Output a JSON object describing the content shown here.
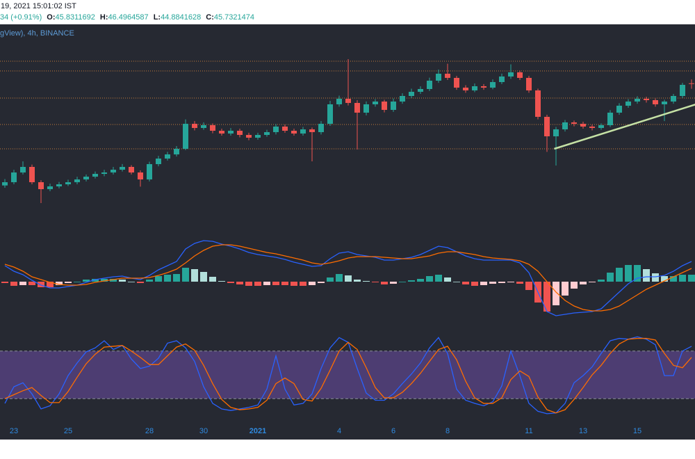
{
  "header": {
    "datetime": "19, 2021 15:01:02 IST",
    "change": "34 (+0.91%)",
    "labels": [
      "O:",
      "H:",
      "L:",
      "C:"
    ]
  },
  "chart_data": [
    {
      "type": "candlestick",
      "title": "gView), 4h, BINANCE",
      "categories": [
        null,
        "23",
        null,
        null,
        null,
        null,
        null,
        "25",
        null,
        null,
        null,
        null,
        null,
        null,
        null,
        null,
        "28",
        null,
        null,
        null,
        null,
        null,
        "30",
        null,
        null,
        null,
        null,
        null,
        "2021",
        null,
        null,
        null,
        null,
        null,
        null,
        null,
        null,
        "4",
        null,
        null,
        null,
        null,
        null,
        "6",
        null,
        null,
        null,
        null,
        null,
        "8",
        null,
        null,
        null,
        null,
        null,
        null,
        null,
        null,
        "11",
        null,
        null,
        null,
        null,
        null,
        "13",
        null,
        null,
        null,
        null,
        null,
        "15",
        null,
        null,
        null,
        null,
        null,
        null
      ],
      "open": [
        28.2,
        28.76,
        30.44,
        31.4,
        28.76,
        27.56,
        28.04,
        28.4,
        28.76,
        29.24,
        29.72,
        30.2,
        30.44,
        30.92,
        31.4,
        30.44,
        29.24,
        31.88,
        32.84,
        33.56,
        34.52,
        38.84,
        38.12,
        38.6,
        37.64,
        37.16,
        37.64,
        36.92,
        36.44,
        36.92,
        37.4,
        38.36,
        37.64,
        37.16,
        37.88,
        37.4,
        38.84,
        42.2,
        43.16,
        42.44,
        40.76,
        42.2,
        42.68,
        41.24,
        42.68,
        43.64,
        44.36,
        44.84,
        46.28,
        47.48,
        46.76,
        45.08,
        44.6,
        45.32,
        45.08,
        46.04,
        47.0,
        47.72,
        46.76,
        44.6,
        40.04,
        36.68,
        37.88,
        39.08,
        38.84,
        38.36,
        38.12,
        38.6,
        40.76,
        41.96,
        42.68,
        43.16,
        42.92,
        42.2,
        42.68,
        43.64,
        45.8311692
      ],
      "high": [
        29.3,
        30.9,
        32.36,
        31.8,
        29.1,
        28.5,
        28.8,
        29.2,
        29.7,
        30.1,
        30.6,
        30.9,
        31.4,
        31.9,
        31.7,
        30.8,
        32.3,
        33.3,
        34.0,
        35.0,
        39.6,
        39.3,
        39.1,
        38.9,
        38.0,
        38.1,
        38.0,
        37.3,
        37.3,
        37.8,
        38.8,
        38.7,
        38.0,
        38.3,
        38.2,
        39.3,
        42.8,
        43.7,
        50.0,
        42.9,
        42.7,
        43.1,
        43.0,
        43.2,
        44.1,
        44.9,
        45.3,
        46.8,
        48.2,
        49.2,
        47.1,
        45.5,
        45.8,
        45.7,
        46.5,
        47.5,
        49.1,
        48.0,
        47.1,
        44.9,
        40.4,
        38.3,
        39.5,
        39.4,
        39.2,
        38.7,
        38.9,
        41.2,
        42.4,
        43.1,
        43.6,
        43.5,
        43.2,
        43.0,
        44.0,
        45.9,
        46.4964587
      ],
      "low": [
        27.8,
        28.4,
        30.1,
        28.4,
        25.16,
        27.2,
        27.7,
        28.1,
        28.4,
        28.9,
        29.4,
        29.8,
        30.1,
        30.6,
        30.1,
        28.0,
        28.9,
        31.5,
        32.5,
        33.2,
        34.3,
        37.7,
        37.8,
        37.2,
        36.8,
        36.8,
        36.5,
        36.0,
        36.1,
        36.6,
        37.0,
        37.3,
        36.8,
        36.8,
        32.36,
        37.0,
        38.5,
        41.8,
        42.0,
        34.4,
        40.3,
        41.8,
        40.8,
        40.9,
        42.3,
        43.3,
        44.0,
        44.5,
        45.9,
        46.4,
        44.7,
        44.2,
        44.3,
        44.7,
        44.8,
        45.7,
        46.6,
        46.4,
        44.2,
        39.6,
        34.0,
        31.64,
        37.5,
        38.4,
        38.0,
        37.7,
        37.8,
        38.3,
        40.4,
        41.6,
        42.3,
        42.5,
        41.8,
        39.3,
        42.3,
        43.3,
        44.8841628
      ],
      "close": [
        28.76,
        30.44,
        31.4,
        28.76,
        27.56,
        28.04,
        28.4,
        28.76,
        29.24,
        29.72,
        30.2,
        30.44,
        30.92,
        31.4,
        30.44,
        29.24,
        31.88,
        32.84,
        33.56,
        34.52,
        38.84,
        38.12,
        38.6,
        37.64,
        37.16,
        37.64,
        36.92,
        36.44,
        36.92,
        37.4,
        38.36,
        37.64,
        37.16,
        37.88,
        37.4,
        38.84,
        42.2,
        43.16,
        42.44,
        40.76,
        42.2,
        42.68,
        41.24,
        42.68,
        43.64,
        44.36,
        44.84,
        46.28,
        47.48,
        46.76,
        45.08,
        44.6,
        45.32,
        45.08,
        46.04,
        47.0,
        47.72,
        46.76,
        44.6,
        40.04,
        36.68,
        37.88,
        39.08,
        38.84,
        38.36,
        38.12,
        38.6,
        40.76,
        41.96,
        42.68,
        43.16,
        42.92,
        42.2,
        42.68,
        43.64,
        45.56,
        45.7321474
      ],
      "ylim": [
        20,
        56
      ],
      "up_color": "#26a69a",
      "down_color": "#ef5350",
      "levels": {
        "values": [
          49.64,
          47.96,
          43.28,
          38.72,
          34.52
        ],
        "color": "#c47c3b"
      },
      "trendline": {
        "x": [
          60.8,
          76.5
        ],
        "y": [
          34.52,
          42.2
        ],
        "color": "#c5e1a5"
      }
    },
    {
      "type": "macd",
      "ylim": [
        -1.4,
        1.4
      ],
      "series": [
        {
          "color": "#2962ff",
          "values": [
            0.46,
            0.3,
            0.2,
            0.04,
            -0.1,
            -0.18,
            -0.18,
            -0.14,
            -0.1,
            -0.02,
            0.06,
            0.1,
            0.14,
            0.16,
            0.1,
            0.06,
            0.18,
            0.34,
            0.46,
            0.58,
            0.94,
            1.1,
            1.18,
            1.16,
            1.08,
            1.02,
            0.94,
            0.84,
            0.78,
            0.74,
            0.7,
            0.64,
            0.56,
            0.5,
            0.44,
            0.46,
            0.66,
            0.82,
            0.86,
            0.78,
            0.74,
            0.7,
            0.62,
            0.62,
            0.66,
            0.7,
            0.78,
            0.9,
            1.02,
            0.98,
            0.86,
            0.74,
            0.66,
            0.62,
            0.62,
            0.62,
            0.62,
            0.54,
            0.26,
            -0.3,
            -0.86,
            -0.98,
            -0.94,
            -0.9,
            -0.88,
            -0.86,
            -0.78,
            -0.54,
            -0.3,
            -0.06,
            0.1,
            0.14,
            0.14,
            0.18,
            0.3,
            0.46,
            0.58
          ]
        },
        {
          "color": "#ff6d00",
          "values": [
            0.5,
            0.42,
            0.3,
            0.14,
            0.06,
            -0.02,
            -0.08,
            -0.1,
            -0.1,
            -0.08,
            -0.02,
            0.02,
            0.06,
            0.1,
            0.1,
            0.1,
            0.12,
            0.18,
            0.26,
            0.36,
            0.54,
            0.74,
            0.9,
            1.02,
            1.06,
            1.06,
            1.02,
            0.96,
            0.9,
            0.84,
            0.8,
            0.74,
            0.68,
            0.62,
            0.54,
            0.5,
            0.54,
            0.6,
            0.68,
            0.72,
            0.72,
            0.72,
            0.7,
            0.68,
            0.66,
            0.66,
            0.7,
            0.74,
            0.82,
            0.86,
            0.86,
            0.82,
            0.78,
            0.72,
            0.68,
            0.66,
            0.64,
            0.6,
            0.5,
            0.3,
            0,
            -0.3,
            -0.54,
            -0.7,
            -0.8,
            -0.84,
            -0.84,
            -0.8,
            -0.7,
            -0.54,
            -0.38,
            -0.22,
            -0.1,
            0.02,
            0.14,
            0.26,
            0.38
          ]
        }
      ],
      "histogram": {
        "colors": [
          "#26a69a",
          "#b2dfdb",
          "#ffcdd2",
          "#ef5350"
        ],
        "values": [
          -0.04,
          -0.12,
          -0.1,
          -0.1,
          -0.16,
          -0.16,
          -0.1,
          -0.04,
          0,
          0.06,
          0.08,
          0.08,
          0.08,
          0.06,
          0,
          -0.04,
          0.06,
          0.16,
          0.2,
          0.22,
          0.4,
          0.36,
          0.28,
          0.14,
          0.02,
          -0.04,
          -0.08,
          -0.12,
          -0.12,
          -0.1,
          -0.1,
          -0.1,
          -0.12,
          -0.12,
          -0.1,
          -0.04,
          0.12,
          0.22,
          0.18,
          0.06,
          0.02,
          -0.02,
          -0.08,
          -0.06,
          0,
          0.04,
          0.08,
          0.16,
          0.2,
          0.12,
          0,
          -0.08,
          -0.12,
          -0.1,
          -0.06,
          -0.04,
          -0.02,
          -0.06,
          -0.24,
          -0.6,
          -0.86,
          -0.68,
          -0.4,
          -0.2,
          -0.08,
          -0.02,
          0.06,
          0.26,
          0.4,
          0.48,
          0.48,
          0.36,
          0.24,
          0.16,
          0.16,
          0.2,
          0.2
        ]
      }
    },
    {
      "type": "stoch",
      "ylim": [
        0,
        100
      ],
      "bands": [
        20,
        80
      ],
      "band_color": "#7e57c2",
      "series": [
        {
          "color": "#2962ff",
          "values": [
            14,
            35,
            40,
            26,
            7,
            11,
            26,
            49,
            65,
            79,
            84,
            93,
            82,
            87,
            70,
            58,
            61,
            71,
            90,
            93,
            84,
            67,
            35,
            14,
            7,
            5,
            7,
            9,
            12,
            32,
            74,
            32,
            12,
            14,
            26,
            58,
            84,
            97,
            91,
            58,
            27,
            18,
            18,
            26,
            39,
            51,
            65,
            84,
            97,
            77,
            32,
            18,
            14,
            11,
            16,
            36,
            80,
            49,
            14,
            4,
            1,
            2,
            14,
            40,
            49,
            60,
            77,
            93,
            96,
            95,
            98,
            95,
            88,
            49,
            49,
            80,
            86
          ]
        },
        {
          "color": "#ff6d00",
          "values": [
            20,
            25,
            30,
            34,
            24,
            15,
            15,
            29,
            47,
            64,
            76,
            85,
            86,
            87,
            80,
            72,
            63,
            63,
            74,
            85,
            89,
            81,
            62,
            39,
            19,
            9,
            6,
            7,
            9,
            18,
            39,
            46,
            39,
            19,
            17,
            33,
            56,
            80,
            91,
            82,
            59,
            34,
            21,
            21,
            28,
            39,
            52,
            67,
            82,
            86,
            69,
            42,
            21,
            14,
            14,
            21,
            44,
            55,
            48,
            22,
            6,
            2,
            6,
            19,
            34,
            50,
            62,
            77,
            89,
            95,
            96,
            96,
            94,
            77,
            62,
            59,
            72
          ]
        }
      ]
    }
  ]
}
